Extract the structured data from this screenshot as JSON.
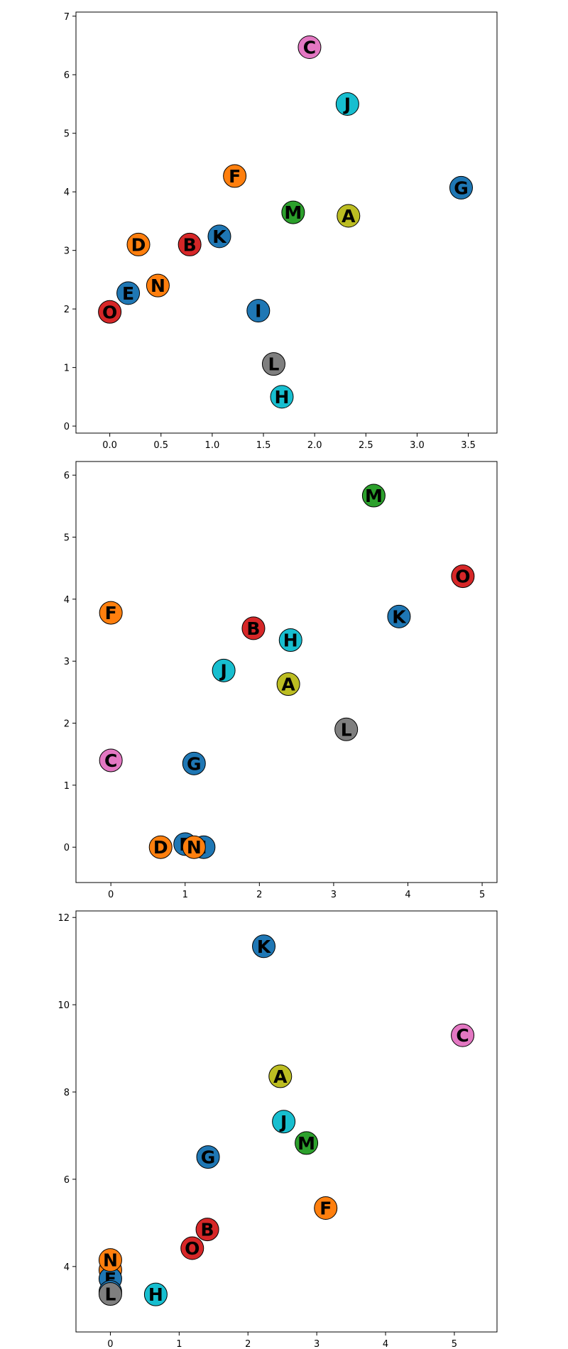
{
  "chart_data": [
    {
      "type": "scatter",
      "title": "",
      "xlabel": "",
      "ylabel": "",
      "xlim": [
        -0.33,
        3.78
      ],
      "ylim": [
        -0.12,
        7.07
      ],
      "xticks": [
        0.0,
        0.5,
        1.0,
        1.5,
        2.0,
        2.5,
        3.0,
        3.5
      ],
      "xtick_labels": [
        "0.0",
        "0.5",
        "1.0",
        "1.5",
        "2.0",
        "2.5",
        "3.0",
        "3.5"
      ],
      "yticks": [
        0,
        1,
        2,
        3,
        4,
        5,
        6,
        7
      ],
      "ytick_labels": [
        "0",
        "1",
        "2",
        "3",
        "4",
        "5",
        "6",
        "7"
      ],
      "grid": false,
      "points": [
        {
          "label": "A",
          "x": 2.33,
          "y": 3.59,
          "color": "#bcbd22"
        },
        {
          "label": "B",
          "x": 0.78,
          "y": 3.1,
          "color": "#d62728"
        },
        {
          "label": "C",
          "x": 1.95,
          "y": 6.47,
          "color": "#e377c2"
        },
        {
          "label": "D",
          "x": 0.28,
          "y": 3.1,
          "color": "#ff7f0e"
        },
        {
          "label": "E",
          "x": 0.18,
          "y": 2.27,
          "color": "#1f77b4"
        },
        {
          "label": "F",
          "x": 1.22,
          "y": 4.27,
          "color": "#ff7f0e"
        },
        {
          "label": "G",
          "x": 3.43,
          "y": 4.07,
          "color": "#1f77b4"
        },
        {
          "label": "H",
          "x": 1.68,
          "y": 0.5,
          "color": "#17becf"
        },
        {
          "label": "I",
          "x": 1.45,
          "y": 1.97,
          "color": "#1f77b4"
        },
        {
          "label": "J",
          "x": 2.32,
          "y": 5.5,
          "color": "#17becf"
        },
        {
          "label": "K",
          "x": 1.07,
          "y": 3.24,
          "color": "#1f77b4"
        },
        {
          "label": "L",
          "x": 1.6,
          "y": 1.06,
          "color": "#7f7f7f"
        },
        {
          "label": "M",
          "x": 1.79,
          "y": 3.65,
          "color": "#2ca02c"
        },
        {
          "label": "N",
          "x": 0.47,
          "y": 2.4,
          "color": "#ff7f0e"
        },
        {
          "label": "O",
          "x": 0.0,
          "y": 1.95,
          "color": "#d62728"
        }
      ]
    },
    {
      "type": "scatter",
      "title": "",
      "xlabel": "",
      "ylabel": "",
      "xlim": [
        -0.47,
        5.2
      ],
      "ylim": [
        -0.57,
        6.22
      ],
      "xticks": [
        0,
        1,
        2,
        3,
        4,
        5
      ],
      "xtick_labels": [
        "0",
        "1",
        "2",
        "3",
        "4",
        "5"
      ],
      "yticks": [
        0,
        1,
        2,
        3,
        4,
        5,
        6
      ],
      "ytick_labels": [
        "0",
        "1",
        "2",
        "3",
        "4",
        "5",
        "6"
      ],
      "grid": false,
      "points": [
        {
          "label": "A",
          "x": 2.39,
          "y": 2.63,
          "color": "#bcbd22"
        },
        {
          "label": "B",
          "x": 1.92,
          "y": 3.53,
          "color": "#d62728"
        },
        {
          "label": "C",
          "x": 0.0,
          "y": 1.4,
          "color": "#e377c2"
        },
        {
          "label": "D",
          "x": 0.67,
          "y": 0.0,
          "color": "#ff7f0e"
        },
        {
          "label": "E",
          "x": 1.0,
          "y": 0.05,
          "color": "#1f77b4"
        },
        {
          "label": "F",
          "x": 0.0,
          "y": 3.78,
          "color": "#ff7f0e"
        },
        {
          "label": "G",
          "x": 1.12,
          "y": 1.35,
          "color": "#1f77b4"
        },
        {
          "label": "H",
          "x": 2.42,
          "y": 3.34,
          "color": "#17becf"
        },
        {
          "label": "I",
          "x": 1.25,
          "y": 0.0,
          "color": "#1f77b4"
        },
        {
          "label": "J",
          "x": 1.52,
          "y": 2.85,
          "color": "#17becf"
        },
        {
          "label": "K",
          "x": 3.88,
          "y": 3.72,
          "color": "#1f77b4"
        },
        {
          "label": "L",
          "x": 3.17,
          "y": 1.9,
          "color": "#7f7f7f"
        },
        {
          "label": "M",
          "x": 3.54,
          "y": 5.67,
          "color": "#2ca02c"
        },
        {
          "label": "N",
          "x": 1.12,
          "y": 0.0,
          "color": "#ff7f0e"
        },
        {
          "label": "O",
          "x": 4.74,
          "y": 4.37,
          "color": "#d62728"
        }
      ]
    },
    {
      "type": "scatter",
      "title": "",
      "xlabel": "",
      "ylabel": "",
      "xlim": [
        -0.5,
        5.62
      ],
      "ylim": [
        2.5,
        12.15
      ],
      "xticks": [
        0,
        1,
        2,
        3,
        4,
        5
      ],
      "xtick_labels": [
        "0",
        "1",
        "2",
        "3",
        "4",
        "5"
      ],
      "yticks": [
        4,
        6,
        8,
        10,
        12
      ],
      "ytick_labels": [
        "4",
        "6",
        "8",
        "10",
        "12"
      ],
      "grid": false,
      "points": [
        {
          "label": "A",
          "x": 2.47,
          "y": 8.36,
          "color": "#bcbd22"
        },
        {
          "label": "B",
          "x": 1.41,
          "y": 4.85,
          "color": "#d62728"
        },
        {
          "label": "C",
          "x": 5.12,
          "y": 9.3,
          "color": "#e377c2"
        },
        {
          "label": "D",
          "x": 0.0,
          "y": 3.92,
          "color": "#ff7f0e"
        },
        {
          "label": "E",
          "x": 0.0,
          "y": 3.72,
          "color": "#1f77b4"
        },
        {
          "label": "F",
          "x": 3.13,
          "y": 5.34,
          "color": "#ff7f0e"
        },
        {
          "label": "G",
          "x": 1.42,
          "y": 6.51,
          "color": "#1f77b4"
        },
        {
          "label": "H",
          "x": 0.66,
          "y": 3.36,
          "color": "#17becf"
        },
        {
          "label": "I",
          "x": 0.0,
          "y": 3.42,
          "color": "#1f77b4"
        },
        {
          "label": "J",
          "x": 2.52,
          "y": 7.32,
          "color": "#17becf"
        },
        {
          "label": "K",
          "x": 2.23,
          "y": 11.34,
          "color": "#1f77b4"
        },
        {
          "label": "L",
          "x": 0.0,
          "y": 3.37,
          "color": "#7f7f7f"
        },
        {
          "label": "M",
          "x": 2.85,
          "y": 6.83,
          "color": "#2ca02c"
        },
        {
          "label": "N",
          "x": 0.0,
          "y": 4.15,
          "color": "#ff7f0e"
        },
        {
          "label": "O",
          "x": 1.19,
          "y": 4.42,
          "color": "#d62728"
        }
      ]
    }
  ]
}
